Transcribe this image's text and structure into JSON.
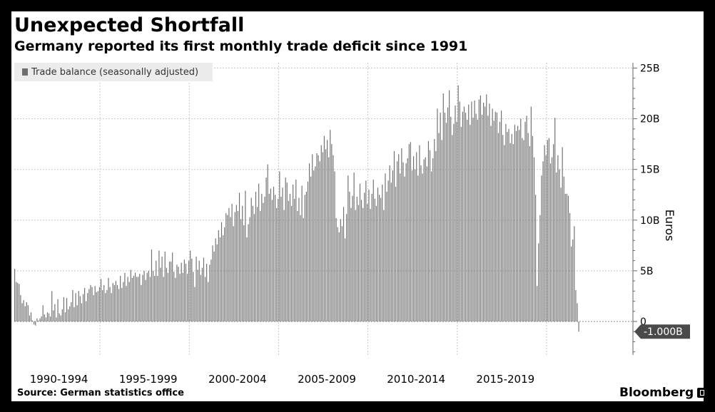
{
  "header": {
    "title": "Unexpected Shortfall",
    "subtitle": "Germany reported its first monthly trade deficit since 1991"
  },
  "legend": {
    "label": "Trade balance (seasonally adjusted)"
  },
  "footer": {
    "source": "Source: German statistics office",
    "brand": "Bloomberg"
  },
  "colors": {
    "bar": "#6e6e6e",
    "grid": "#c8c8c8",
    "callout": "#4a4a4a"
  },
  "chart_data": {
    "type": "bar",
    "ylabel": "Euros",
    "ylim": [
      -3,
      25
    ],
    "y_ticks": [
      {
        "value": 25,
        "label": "25B"
      },
      {
        "value": 20,
        "label": "20B"
      },
      {
        "value": 15,
        "label": "15B"
      },
      {
        "value": 10,
        "label": "10B"
      },
      {
        "value": 5,
        "label": "5B"
      },
      {
        "value": 0,
        "label": "0"
      }
    ],
    "x_start": 1990,
    "x_end": 2024.2,
    "x_ticks": [
      {
        "label": "1990-1994",
        "x": 1992.5
      },
      {
        "label": "1995-1999",
        "x": 1997.5
      },
      {
        "label": "2000-2004",
        "x": 2002.5
      },
      {
        "label": "2005-2009",
        "x": 2007.5
      },
      {
        "label": "2010-2014",
        "x": 2012.5
      },
      {
        "label": "2015-2019",
        "x": 2017.5
      }
    ],
    "x_gridlines": [
      1994.8,
      1999.8,
      2004.8,
      2009.8,
      2014.8,
      2019.8
    ],
    "last_value_label": "-1.000B",
    "last_value": -1.0,
    "yearly_values": [
      [
        5.2,
        3.9,
        3.8,
        3.7,
        2.6,
        1.8,
        2.1,
        1.5,
        1.9,
        1.6,
        0.6,
        0.9
      ],
      [
        0.1,
        -0.3,
        -0.4,
        0.3,
        0.1,
        0.3,
        0.5,
        1.6,
        0.7,
        0.4,
        0.9,
        0.8
      ],
      [
        0.5,
        3.0,
        1.1,
        1.7,
        0.4,
        2.2,
        0.8,
        0.6,
        1.2,
        2.4,
        0.9,
        2.3
      ],
      [
        1.2,
        1.5,
        1.9,
        3.1,
        1.4,
        2.8,
        1.6,
        3.0,
        2.5,
        1.8,
        2.7,
        3.3
      ],
      [
        2.0,
        2.8,
        3.2,
        3.6,
        3.4,
        2.6,
        3.5,
        2.9,
        3.0,
        3.4,
        4.2,
        3.1
      ],
      [
        3.6,
        2.8,
        3.1,
        4.3,
        3.4,
        2.8,
        3.8,
        3.6,
        4.0,
        3.6,
        3.2,
        4.5
      ],
      [
        3.3,
        3.9,
        4.8,
        3.5,
        4.4,
        3.9,
        5.1,
        4.3,
        4.5,
        4.8,
        4.4,
        4.4
      ],
      [
        4.7,
        3.6,
        4.6,
        5.0,
        4.1,
        4.8,
        5.0,
        4.4,
        7.1,
        5.0,
        4.5,
        6.0
      ],
      [
        4.5,
        7.0,
        5.3,
        6.4,
        4.4,
        6.9,
        5.3,
        4.8,
        5.9,
        5.9,
        6.8,
        4.9
      ],
      [
        4.3,
        5.6,
        5.4,
        4.7,
        5.8,
        4.8,
        6.1,
        5.7,
        4.7,
        6.0,
        7.0,
        6.2
      ],
      [
        4.9,
        3.4,
        6.4,
        5.1,
        6.0,
        4.6,
        5.3,
        6.3,
        4.4,
        5.7,
        3.9,
        5.6
      ],
      [
        6.1,
        7.5,
        6.9,
        8.2,
        7.6,
        9.0,
        8.3,
        9.8,
        8.5,
        9.3,
        10.7,
        10.5
      ],
      [
        11.2,
        10.3,
        11.6,
        9.4,
        10.8,
        11.5,
        10.9,
        12.7,
        10.1,
        11.4,
        9.5,
        12.9
      ],
      [
        8.3,
        9.6,
        10.3,
        12.2,
        11.4,
        10.6,
        12.8,
        11.3,
        13.6,
        10.9,
        12.6,
        11.7
      ],
      [
        12.3,
        14.2,
        15.5,
        12.6,
        13.1,
        12.0,
        13.3,
        12.5,
        11.2,
        12.1,
        14.8,
        12.3
      ],
      [
        13.2,
        11.0,
        14.2,
        13.7,
        11.9,
        12.6,
        11.4,
        13.5,
        12.1,
        14.0,
        10.9,
        12.2
      ],
      [
        10.5,
        13.4,
        10.2,
        12.5,
        12.8,
        13.8,
        15.6,
        14.3,
        16.5,
        14.9,
        15.3,
        16.6
      ],
      [
        16.4,
        15.8,
        17.4,
        16.7,
        18.3,
        17.0,
        17.9,
        16.2,
        18.9,
        17.5,
        16.4,
        14.8
      ],
      [
        10.2,
        9.3,
        8.8,
        10.1,
        9.4,
        11.3,
        8.2,
        10.6,
        14.4,
        12.8,
        11.2,
        12.4
      ],
      [
        14.7,
        11.0,
        12.3,
        11.5,
        13.6,
        12.0,
        11.2,
        12.7,
        13.9,
        11.6,
        13.0,
        11.1
      ],
      [
        12.6,
        14.0,
        12.1,
        11.4,
        13.2,
        12.5,
        12.2,
        13.5,
        11.0,
        14.6,
        12.8,
        13.9
      ],
      [
        15.4,
        13.7,
        14.9,
        16.8,
        13.3,
        15.8,
        16.5,
        14.6,
        17.1,
        15.7,
        14.3,
        15.6
      ],
      [
        16.1,
        17.5,
        17.7,
        14.9,
        16.3,
        15.0,
        16.7,
        14.4,
        17.4,
        15.4,
        14.6,
        16.0
      ],
      [
        16.2,
        15.3,
        17.8,
        16.9,
        14.8,
        16.1,
        18.0,
        16.8,
        21.0,
        18.6,
        20.6,
        17.9
      ],
      [
        22.5,
        20.6,
        19.6,
        21.1,
        22.8,
        20.2,
        18.4,
        19.5,
        21.3,
        19.7,
        23.3,
        21.7
      ],
      [
        19.2,
        20.7,
        21.2,
        20.6,
        19.9,
        21.4,
        19.4,
        21.7,
        20.1,
        21.8,
        20.5,
        19.9
      ],
      [
        21.9,
        22.3,
        20.4,
        21.6,
        21.2,
        22.4,
        20.3,
        21.5,
        19.3,
        21.0,
        19.8,
        20.7
      ],
      [
        20.6,
        18.6,
        19.7,
        20.8,
        18.4,
        17.4,
        19.5,
        18.7,
        19.0,
        17.6,
        18.5,
        17.5
      ],
      [
        19.4,
        18.8,
        19.3,
        18.9,
        20.0,
        18.1,
        17.9,
        19.7,
        20.3,
        18.6,
        17.3,
        21.2
      ],
      [
        18.3,
        16.2,
        12.5,
        3.5,
        7.7,
        10.5,
        14.4,
        15.8,
        17.4,
        16.4,
        17.9,
        18.1
      ],
      [
        15.6,
        16.2,
        17.5,
        20.1,
        14.7,
        16.4,
        15.0,
        13.2,
        17.2,
        14.3,
        12.6,
        12.6
      ],
      [
        12.4,
        10.7,
        7.4,
        8.1,
        9.4,
        3.1,
        1.8,
        -1.0
      ]
    ]
  }
}
